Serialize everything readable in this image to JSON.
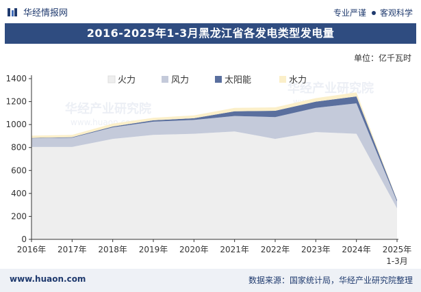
{
  "header": {
    "brand": "华经情报网",
    "tagline_left": "专业严谨",
    "tagline_right": "客观科学"
  },
  "unit_label": "单位：亿千瓦时",
  "footer": {
    "site": "www.huaon.com",
    "source": "数据来源：国家统计局，华经产业研究院整理"
  },
  "watermark": {
    "main": "华经产业研究院",
    "sub": "www.huaon.com"
  },
  "colors": {
    "header_bg": "#2f4c80",
    "thermal": "#eeeeee",
    "wind": "#c4cada",
    "solar": "#5a6f9e",
    "hydro": "#fbefc9"
  },
  "chart_data": {
    "type": "area",
    "stacked": true,
    "title": "2016-2025年1-3月黑龙江省各发电类型发电量",
    "categories": [
      "2016年",
      "2017年",
      "2018年",
      "2019年",
      "2020年",
      "2021年",
      "2022年",
      "2023年",
      "2024年",
      "2025年\n1-3月"
    ],
    "ylim": [
      0,
      1400
    ],
    "yticks": [
      0,
      200,
      400,
      600,
      800,
      1000,
      1200,
      1400
    ],
    "legend_position": "top",
    "series": [
      {
        "name": "火力",
        "color": "#eeeeee",
        "values": [
          805,
          805,
          875,
          910,
          920,
          940,
          875,
          935,
          920,
          270
        ]
      },
      {
        "name": "风力",
        "color": "#c4cada",
        "values": [
          75,
          80,
          100,
          115,
          120,
          135,
          190,
          210,
          265,
          60
        ]
      },
      {
        "name": "太阳能",
        "color": "#5a6f9e",
        "values": [
          3,
          5,
          8,
          12,
          15,
          40,
          55,
          55,
          60,
          13
        ]
      },
      {
        "name": "水力",
        "color": "#fbefc9",
        "values": [
          20,
          20,
          25,
          22,
          25,
          30,
          30,
          30,
          35,
          3
        ]
      }
    ]
  }
}
